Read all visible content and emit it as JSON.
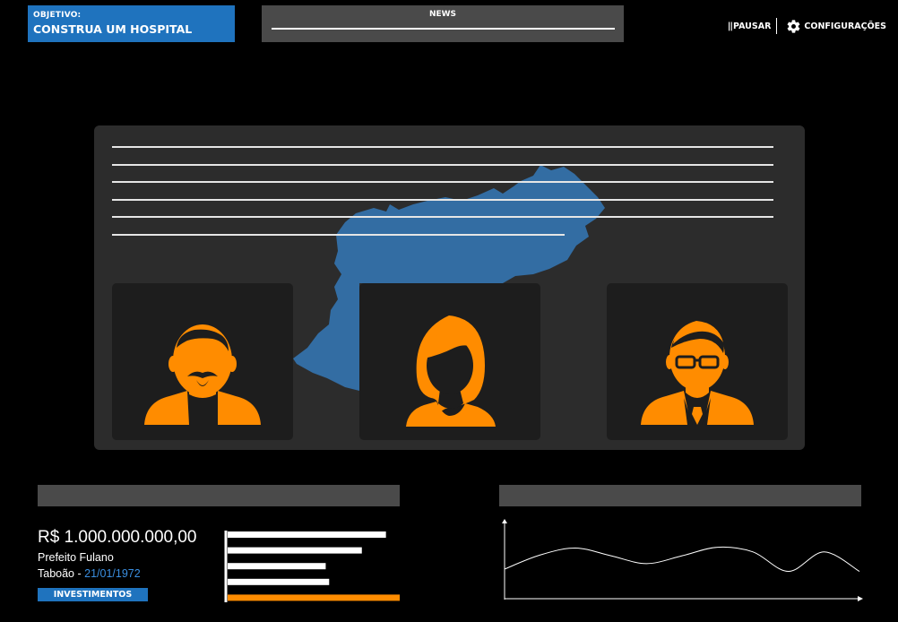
{
  "objective": {
    "label": "OBJETIVO:",
    "task": "CONSTRUA UM HOSPITAL"
  },
  "news": {
    "title": "NEWS"
  },
  "controls": {
    "pause_icon": "||",
    "pause_label": "PAUSAR",
    "config_icon": "gear-icon",
    "config_label": "CONFIGURAÇÕES"
  },
  "mayor_panel": {
    "money": "R$ 1.000.000.000,00",
    "mayor_name": "Prefeito Fulano",
    "city": "Taboão",
    "separator": " - ",
    "date": "21/01/1972",
    "invest_label": "INVESTIMENTOS"
  },
  "colors": {
    "accent_blue": "#1f73be",
    "map_blue": "#336da3",
    "avatar_orange": "#ff8c00",
    "panel_dark": "#2c2c2c",
    "card_dark": "#1d1d1d",
    "header_gray": "#4a4a4a"
  },
  "chart_data": [
    {
      "type": "bar",
      "orientation": "horizontal",
      "values": [
        0.92,
        0.78,
        0.57,
        0.59,
        1.0
      ],
      "colors": [
        "#ffffff",
        "#ffffff",
        "#ffffff",
        "#ffffff",
        "#ff8c00"
      ],
      "title": "",
      "xlabel": "",
      "ylabel": ""
    },
    {
      "type": "line",
      "x": [
        0,
        1,
        2,
        3,
        4,
        5,
        6,
        7,
        8,
        9,
        10
      ],
      "values": [
        0.38,
        0.56,
        0.65,
        0.55,
        0.45,
        0.55,
        0.66,
        0.6,
        0.35,
        0.6,
        0.35
      ],
      "title": "",
      "xlabel": "",
      "ylabel": ""
    }
  ],
  "avatars": [
    {
      "icon": "bearded-man-avatar-icon"
    },
    {
      "icon": "woman-avatar-icon"
    },
    {
      "icon": "man-with-glasses-avatar-icon"
    }
  ]
}
